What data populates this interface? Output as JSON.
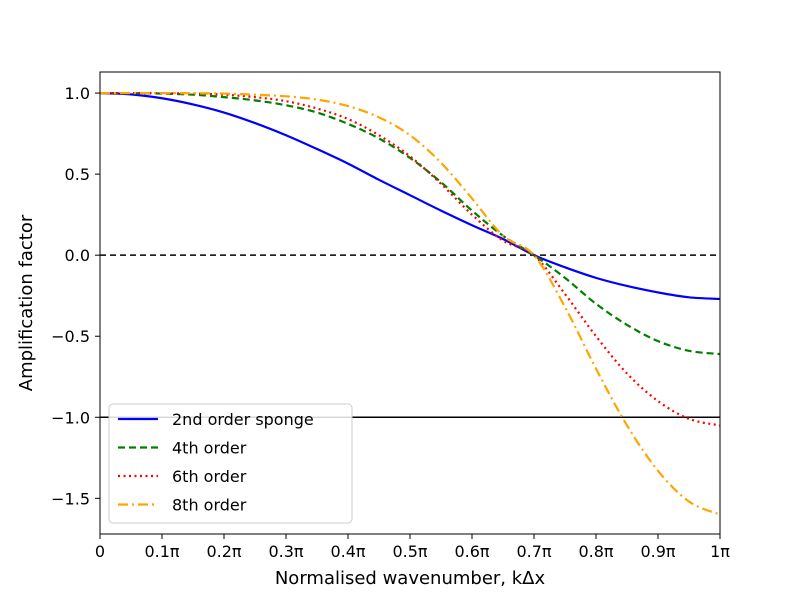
{
  "chart_data": {
    "type": "line",
    "xlabel": "Normalised wavenumber, kΔx",
    "ylabel": "Amplification factor",
    "xlim": [
      0,
      1
    ],
    "ylim": [
      -1.72,
      1.13
    ],
    "x_ticks": [
      {
        "value": 0.0,
        "label": "0"
      },
      {
        "value": 0.1,
        "label": "0.1π"
      },
      {
        "value": 0.2,
        "label": "0.2π"
      },
      {
        "value": 0.3,
        "label": "0.3π"
      },
      {
        "value": 0.4,
        "label": "0.4π"
      },
      {
        "value": 0.5,
        "label": "0.5π"
      },
      {
        "value": 0.6,
        "label": "0.6π"
      },
      {
        "value": 0.7,
        "label": "0.7π"
      },
      {
        "value": 0.8,
        "label": "0.8π"
      },
      {
        "value": 0.9,
        "label": "0.9π"
      },
      {
        "value": 1.0,
        "label": "1π"
      }
    ],
    "y_ticks": [
      {
        "value": 1.0,
        "label": "1.0"
      },
      {
        "value": 0.5,
        "label": "0.5"
      },
      {
        "value": 0.0,
        "label": "0.0"
      },
      {
        "value": -0.5,
        "label": "−0.5"
      },
      {
        "value": -1.0,
        "label": "−1.0"
      },
      {
        "value": -1.5,
        "label": "−1.5"
      }
    ],
    "grid": false,
    "legend_position": "lower-left",
    "reference_lines": [
      {
        "y": 0.0,
        "style": "dashed",
        "color": "#000000"
      },
      {
        "y": -1.0,
        "style": "solid",
        "color": "#000000"
      }
    ],
    "x": [
      0.0,
      0.05,
      0.1,
      0.15,
      0.2,
      0.25,
      0.3,
      0.35,
      0.4,
      0.45,
      0.5,
      0.55,
      0.6,
      0.65,
      0.7,
      0.75,
      0.8,
      0.85,
      0.9,
      0.95,
      1.0
    ],
    "series": [
      {
        "name": "2nd order sponge",
        "color": "#0000ff",
        "dash": "solid",
        "values": [
          1.0,
          0.992,
          0.968,
          0.93,
          0.88,
          0.815,
          0.74,
          0.655,
          0.565,
          0.465,
          0.37,
          0.275,
          0.185,
          0.1,
          0.0,
          -0.075,
          -0.14,
          -0.19,
          -0.23,
          -0.26,
          -0.27
        ]
      },
      {
        "name": "4th order",
        "color": "#008000",
        "dash": "dashed",
        "values": [
          1.0,
          0.9995,
          0.997,
          0.99,
          0.975,
          0.955,
          0.925,
          0.88,
          0.81,
          0.72,
          0.6,
          0.45,
          0.275,
          0.12,
          0.0,
          -0.14,
          -0.3,
          -0.43,
          -0.53,
          -0.59,
          -0.61
        ]
      },
      {
        "name": "6th order",
        "color": "#ff0000",
        "dash": "dotted",
        "values": [
          1.0,
          1.0,
          0.999,
          0.997,
          0.99,
          0.975,
          0.95,
          0.905,
          0.84,
          0.74,
          0.61,
          0.44,
          0.25,
          0.09,
          0.0,
          -0.24,
          -0.5,
          -0.73,
          -0.9,
          -1.01,
          -1.05
        ]
      },
      {
        "name": "8th order",
        "color": "#ffa500",
        "dash": "dashdot",
        "values": [
          1.0,
          1.0,
          1.0,
          0.999,
          0.997,
          0.99,
          0.98,
          0.96,
          0.92,
          0.85,
          0.74,
          0.57,
          0.35,
          0.12,
          0.0,
          -0.32,
          -0.7,
          -1.05,
          -1.33,
          -1.52,
          -1.6
        ]
      }
    ]
  }
}
